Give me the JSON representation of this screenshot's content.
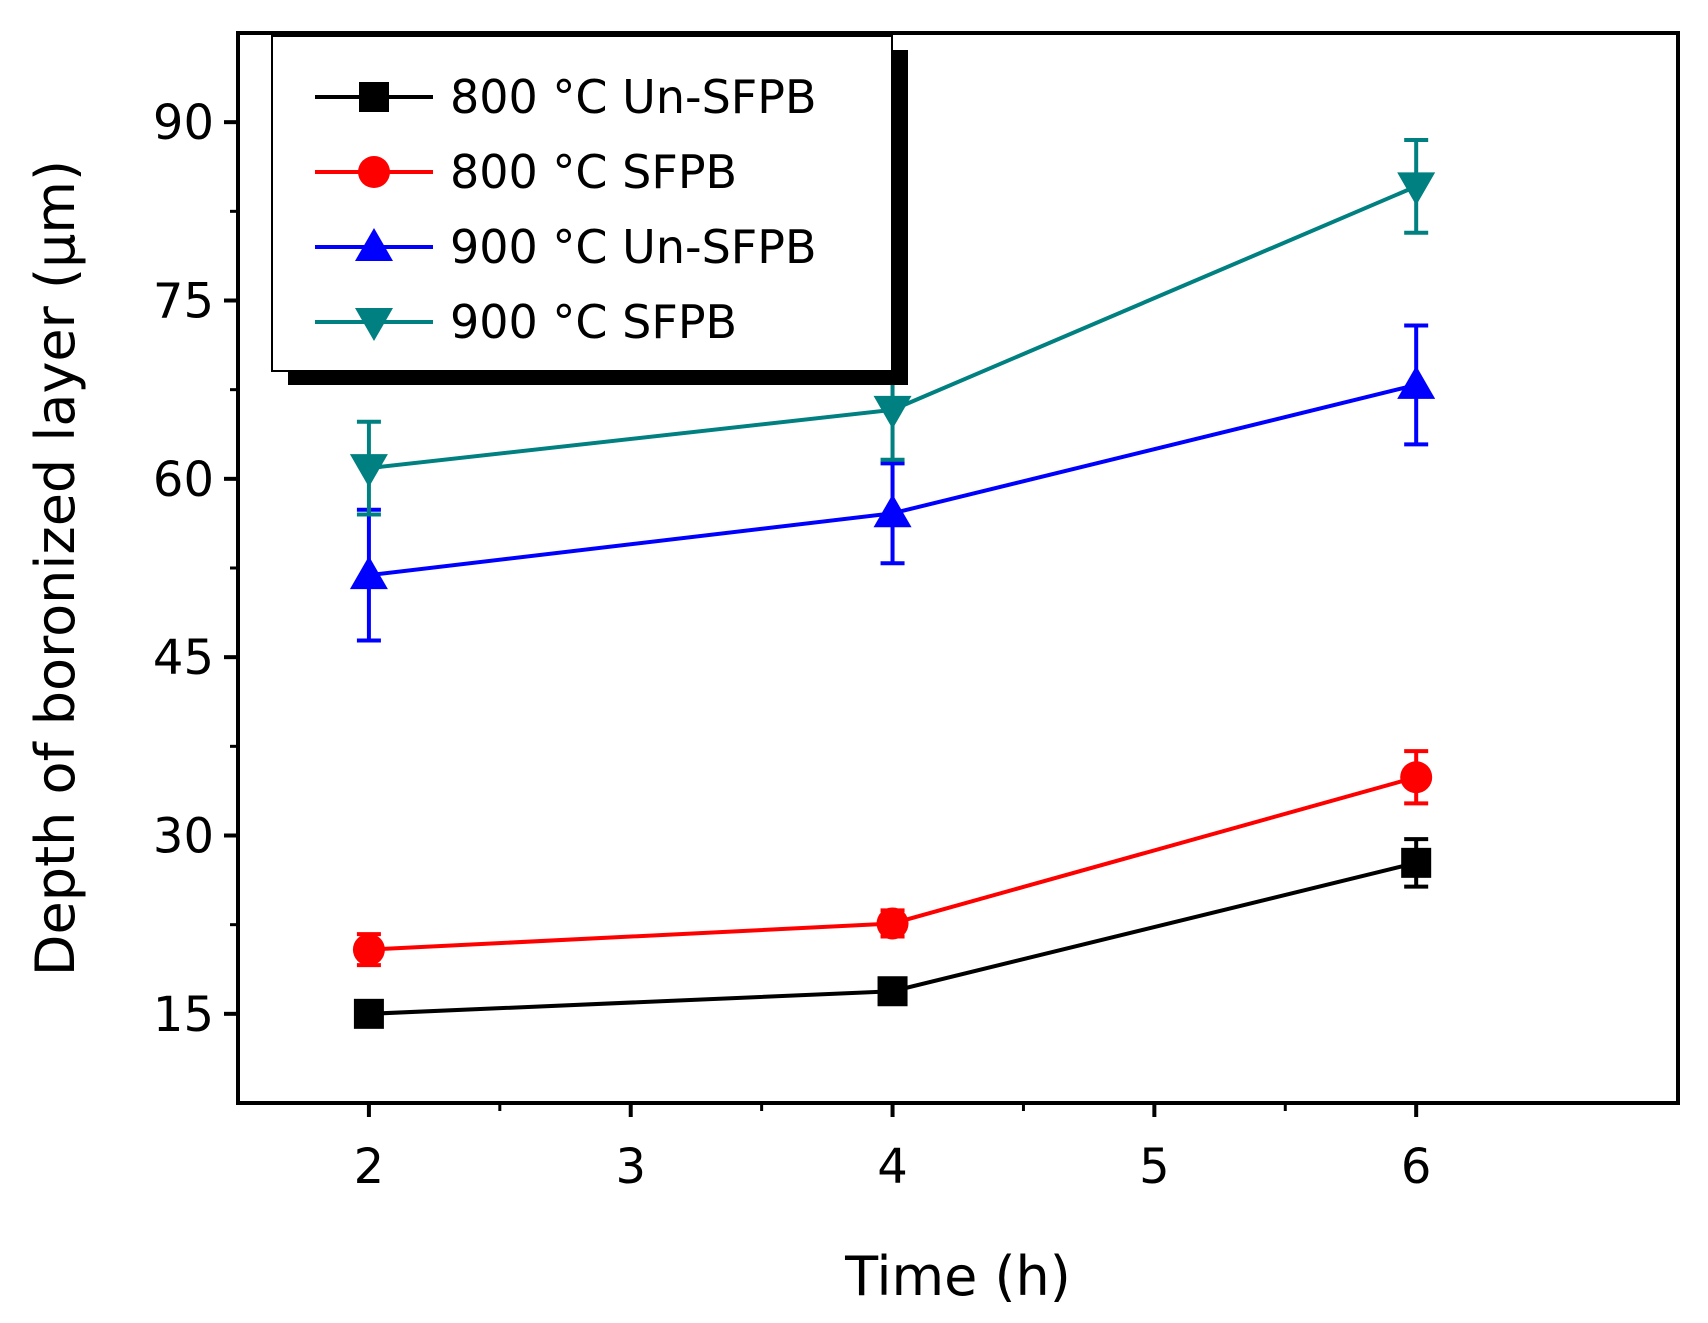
{
  "chart_data": {
    "type": "line",
    "xlabel": "Time (h)",
    "ylabel": "Depth of boronized layer (μm)",
    "xlim": [
      1.5,
      7.0
    ],
    "ylim": [
      7.5,
      97.5
    ],
    "xticks": [
      2,
      3,
      4,
      5,
      6
    ],
    "yticks": [
      15,
      30,
      45,
      60,
      75,
      90
    ],
    "grid": false,
    "legend_position": "top-left",
    "x": [
      2,
      4,
      6
    ],
    "series": [
      {
        "name": "800 °C Un-SFPB",
        "color": "#000000",
        "marker": "square",
        "values": [
          15.0,
          16.9,
          27.7
        ],
        "errors": [
          0.7,
          0.9,
          2.0
        ]
      },
      {
        "name": "800 °C SFPB",
        "color": "#ff0000",
        "marker": "circle",
        "values": [
          20.4,
          22.6,
          34.9
        ],
        "errors": [
          1.3,
          1.1,
          2.2
        ]
      },
      {
        "name": "900 °C Un-SFPB",
        "color": "#0000ff",
        "marker": "triangle-up",
        "values": [
          51.9,
          57.1,
          67.9
        ],
        "errors": [
          5.5,
          4.2,
          5.0
        ]
      },
      {
        "name": "900 °C SFPB",
        "color": "#008080",
        "marker": "triangle-down",
        "values": [
          60.9,
          65.8,
          84.6
        ],
        "errors": [
          3.9,
          4.2,
          3.9
        ]
      }
    ]
  }
}
